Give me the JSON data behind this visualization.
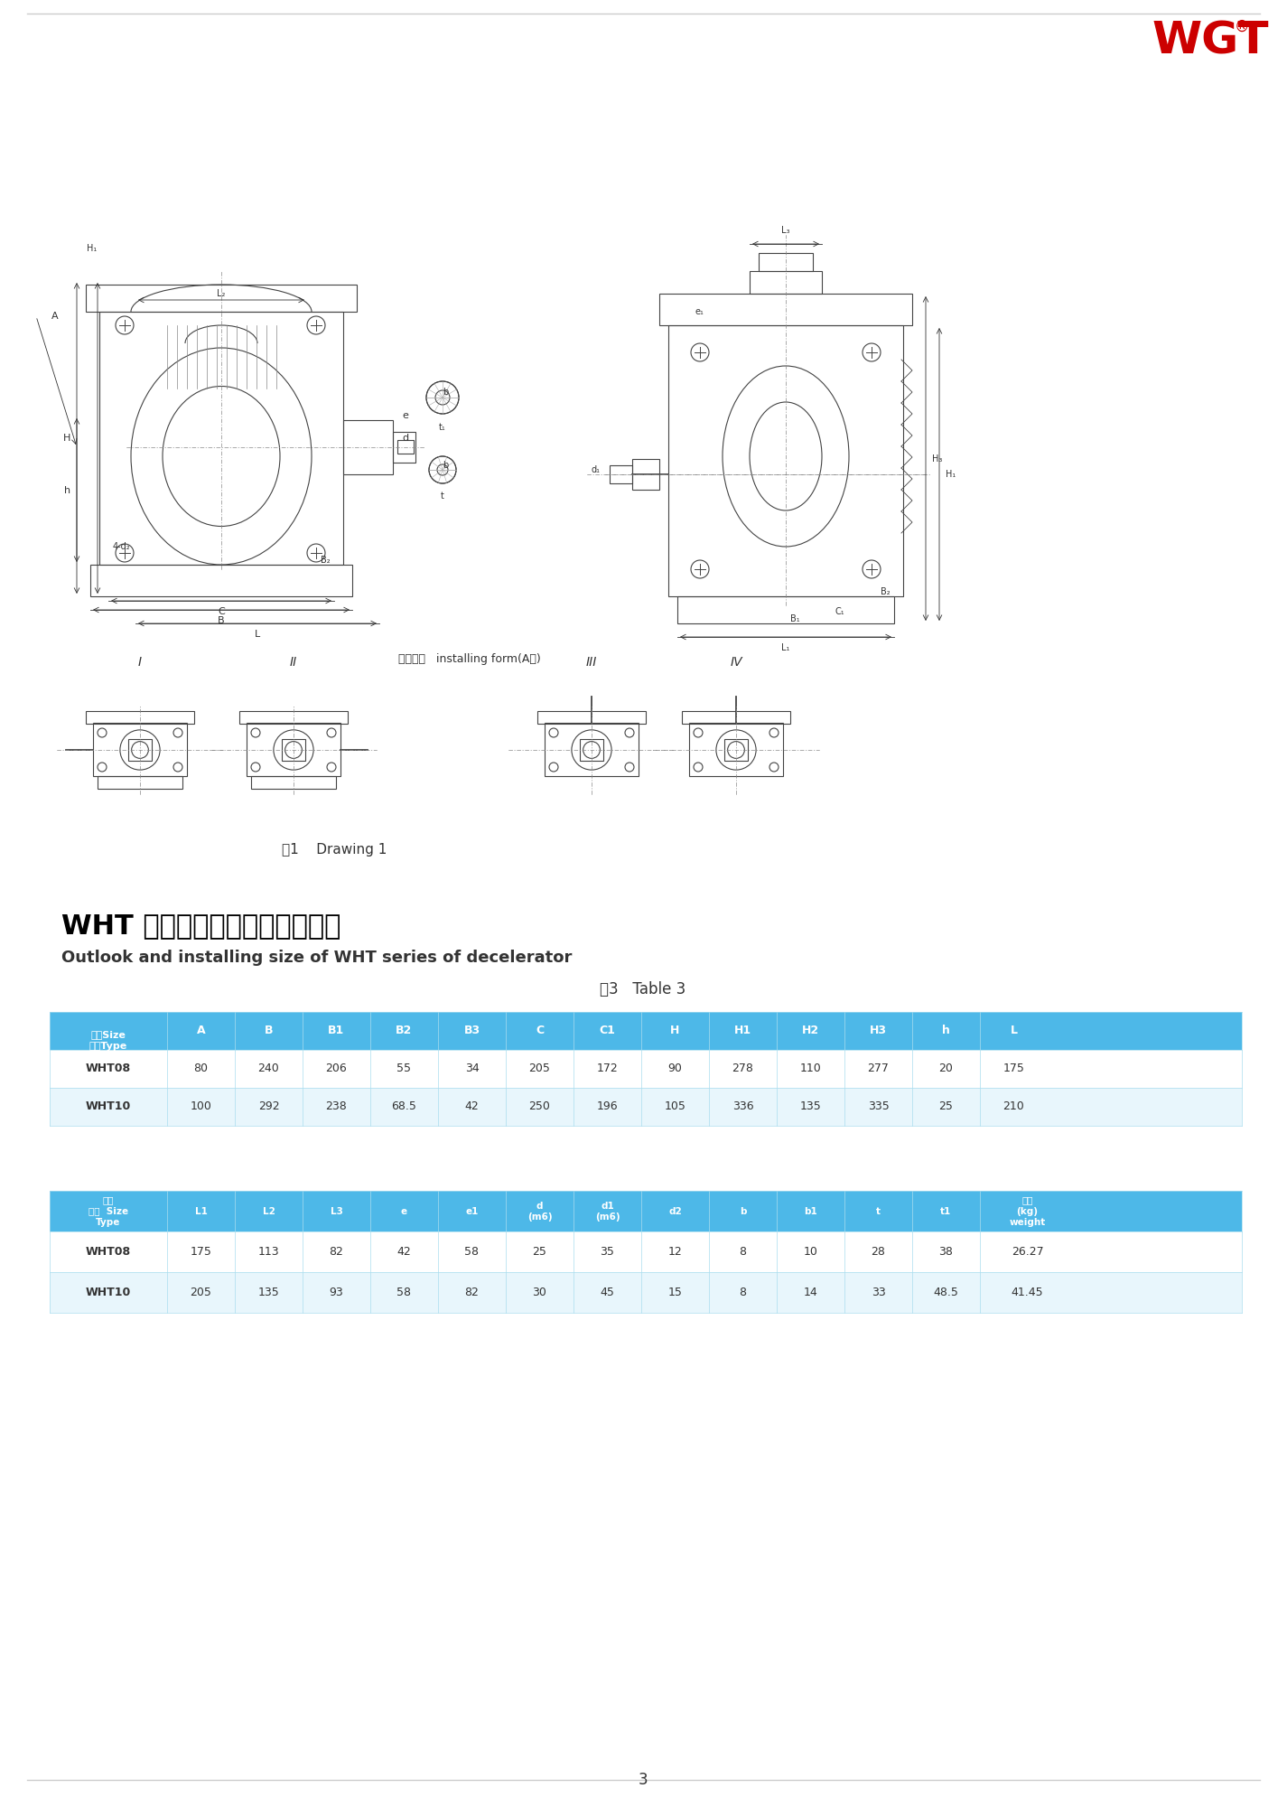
{
  "page_bg": "#ffffff",
  "logo_text": "WGT",
  "logo_color": "#cc0000",
  "logo_registered": true,
  "title_zh": "WHT 系列减速器外形及安装尺寸",
  "title_en": "Outlook and installing size of WHT series of decelerator",
  "table_title": "表3   Table 3",
  "table1_header_bg": "#4db8e8",
  "table1_row_bg1": "#ffffff",
  "table1_row_bg2": "#e8f6fc",
  "table1_header": [
    "尺寸Size\n型号Type",
    "A",
    "B",
    "B1",
    "B2",
    "B3",
    "C",
    "C1",
    "H",
    "H1",
    "H2",
    "H3",
    "h",
    "L"
  ],
  "table1_rows": [
    [
      "WHT08",
      "80",
      "240",
      "206",
      "55",
      "34",
      "205",
      "172",
      "90",
      "278",
      "110",
      "277",
      "20",
      "175"
    ],
    [
      "WHT10",
      "100",
      "292",
      "238",
      "68.5",
      "42",
      "250",
      "196",
      "105",
      "336",
      "135",
      "335",
      "25",
      "210"
    ]
  ],
  "table2_header": [
    "尺寸\n型号  Size\nType",
    "L1",
    "L2",
    "L3",
    "e",
    "e1",
    "d\n(m6)",
    "d1\n(m6)",
    "d2",
    "b",
    "b1",
    "t",
    "t1",
    "重量\n(kg)\nweight"
  ],
  "table2_rows": [
    [
      "WHT08",
      "175",
      "113",
      "82",
      "42",
      "58",
      "25",
      "35",
      "12",
      "8",
      "10",
      "28",
      "38",
      "26.27"
    ],
    [
      "WHT10",
      "205",
      "135",
      "93",
      "58",
      "82",
      "30",
      "45",
      "15",
      "8",
      "14",
      "33",
      "48.5",
      "41.45"
    ]
  ],
  "figure_caption": "图1    Drawing 1",
  "install_label": "装配形式   installing form(A向)",
  "install_nums": [
    "I",
    "II",
    "III",
    "IV"
  ],
  "page_number": "3"
}
